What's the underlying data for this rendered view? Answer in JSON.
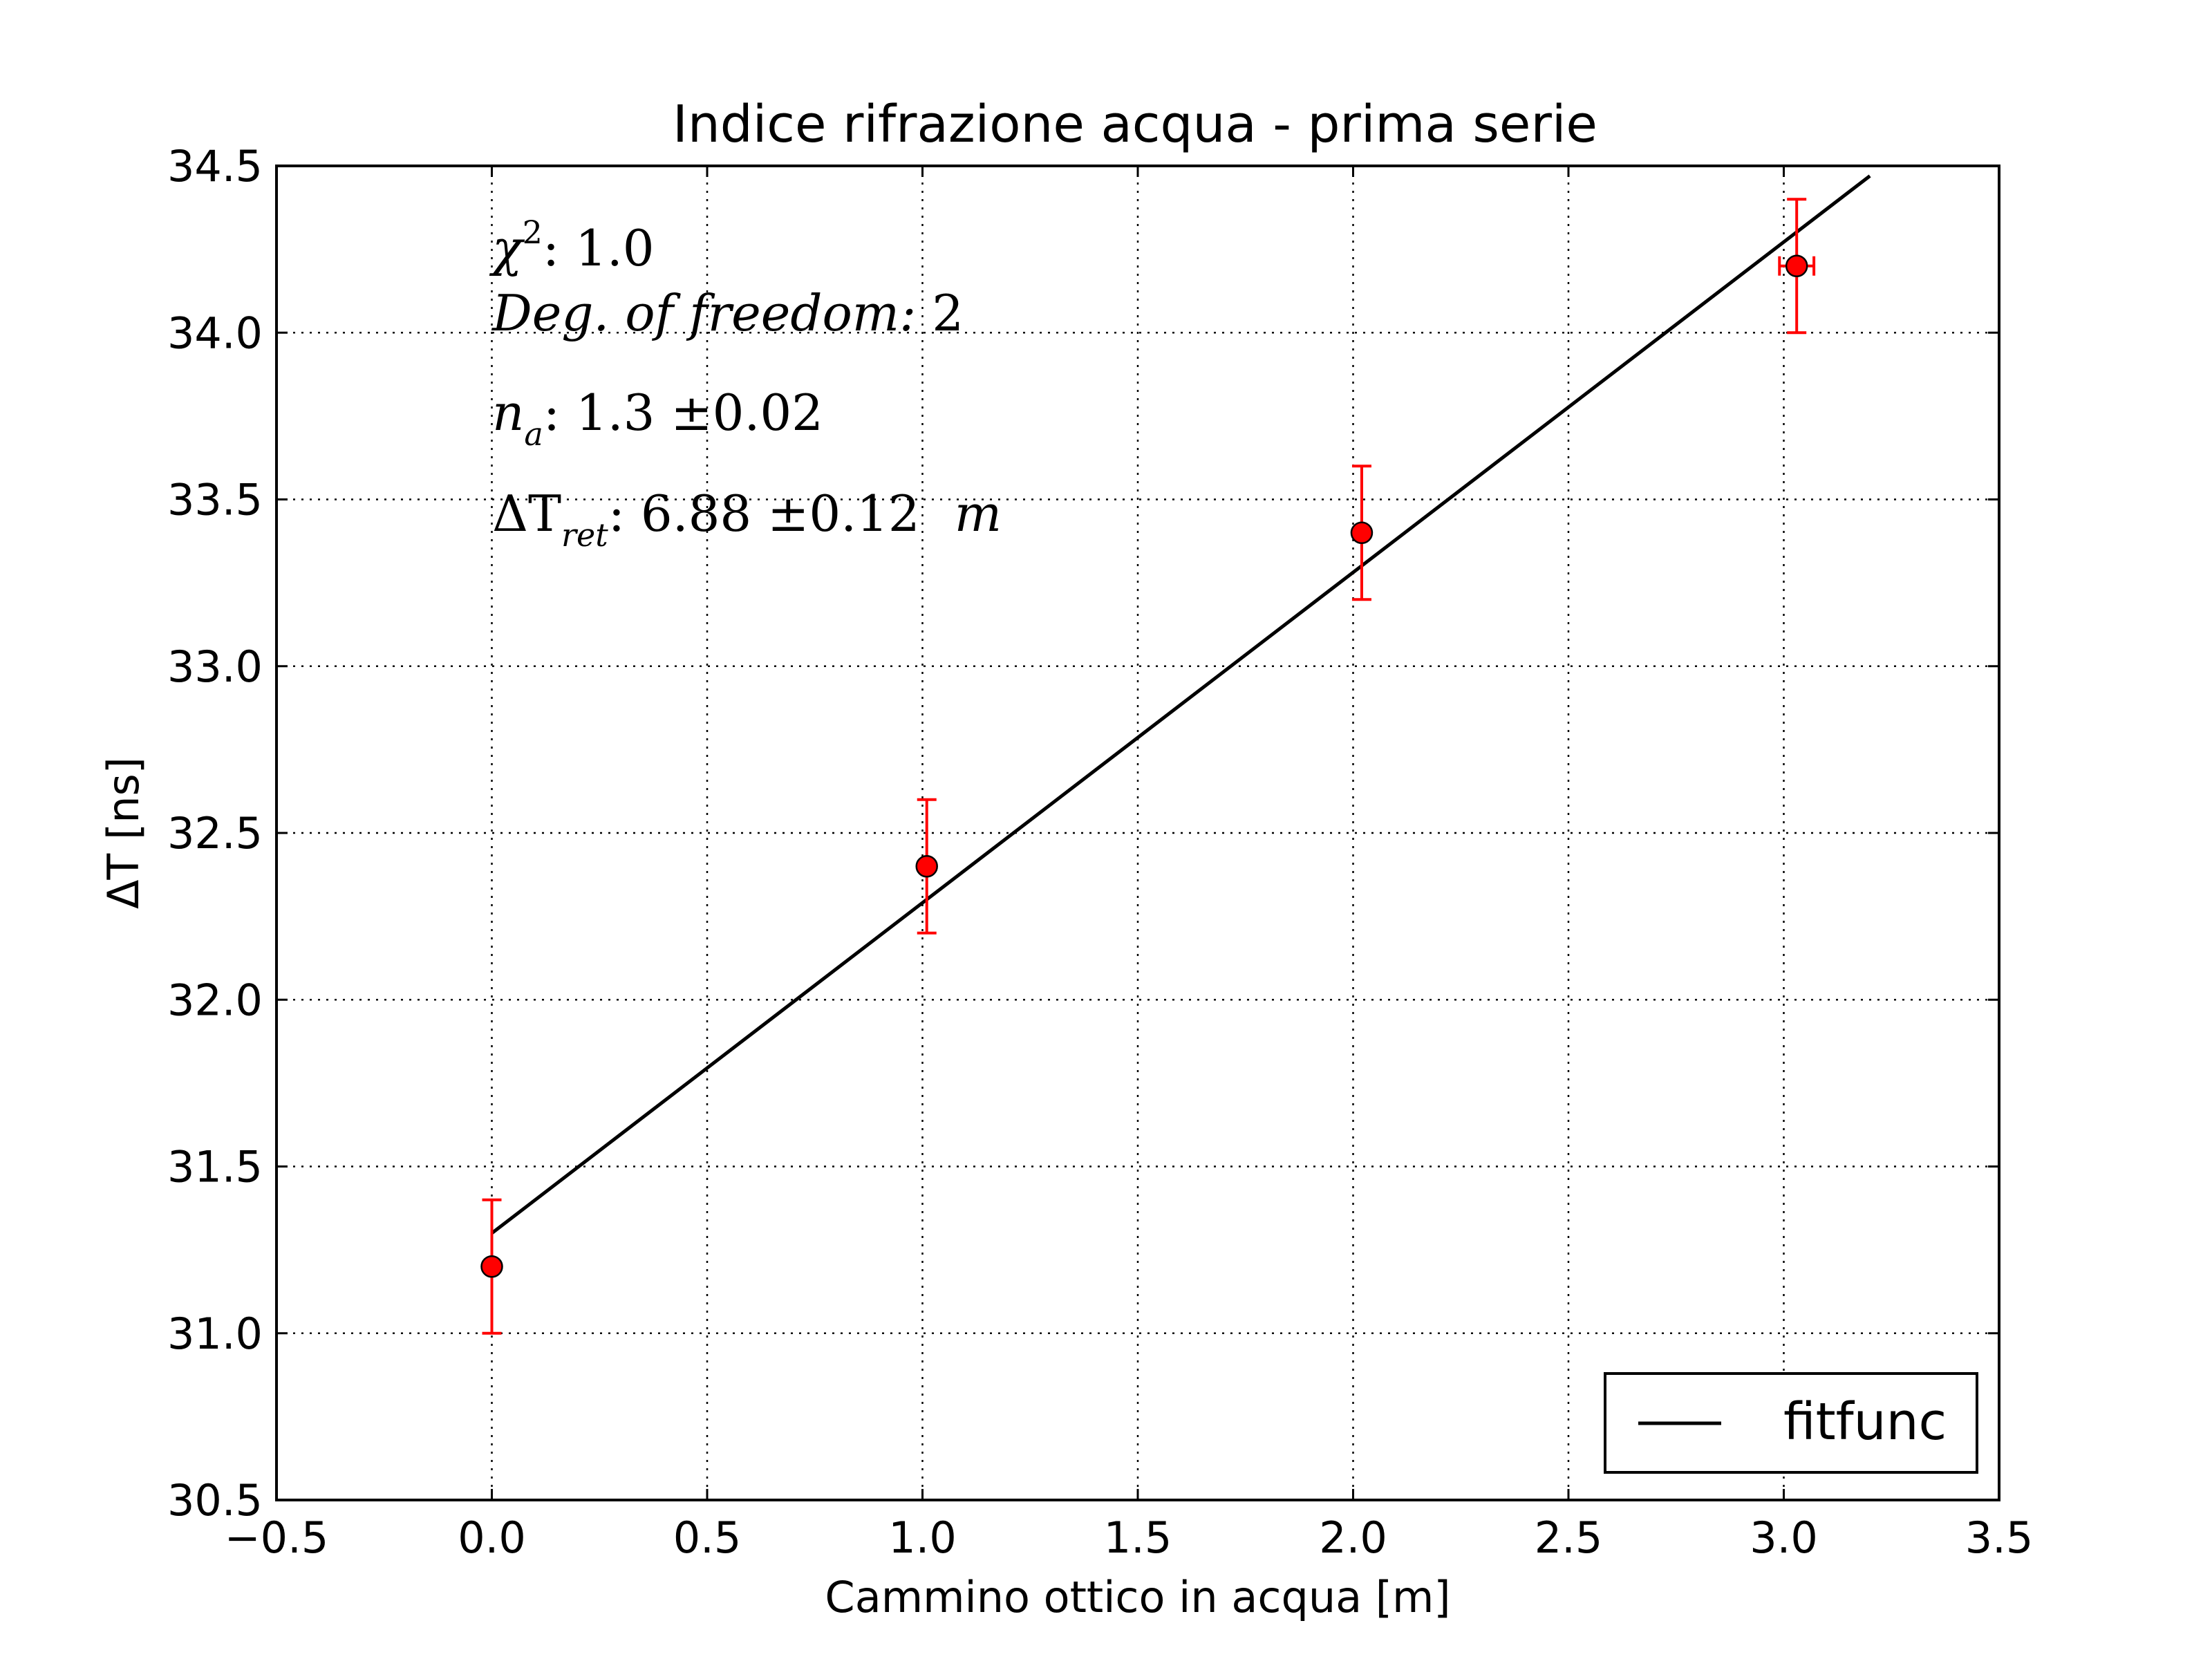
{
  "chart_data": {
    "type": "scatter",
    "title": "Indice rifrazione acqua - prima serie",
    "xlabel": "Cammino ottico in acqua [m]",
    "ylabel": "ΔT [ns]",
    "xlim": [
      -0.5,
      3.5
    ],
    "ylim": [
      30.5,
      34.5
    ],
    "xticks": [
      -0.5,
      0.0,
      0.5,
      1.0,
      1.5,
      2.0,
      2.5,
      3.0,
      3.5
    ],
    "xtick_labels": [
      "−0.5",
      "0.0",
      "0.5",
      "1.0",
      "1.5",
      "2.0",
      "2.5",
      "3.0",
      "3.5"
    ],
    "yticks": [
      30.5,
      31.0,
      31.5,
      32.0,
      32.5,
      33.0,
      33.5,
      34.0,
      34.5
    ],
    "ytick_labels": [
      "30.5",
      "31.0",
      "31.5",
      "32.0",
      "32.5",
      "33.0",
      "33.5",
      "34.0",
      "34.5"
    ],
    "grid": true,
    "legend_position": "lower-right",
    "series": [
      {
        "kind": "errorbar",
        "color": "#ff0000",
        "points": [
          {
            "x": 0.0,
            "y": 31.2,
            "yerr": 0.2,
            "xerr": 0.0
          },
          {
            "x": 1.01,
            "y": 32.4,
            "yerr": 0.2,
            "xerr": 0.01
          },
          {
            "x": 2.02,
            "y": 33.4,
            "yerr": 0.2,
            "xerr": 0.01
          },
          {
            "x": 3.03,
            "y": 34.2,
            "yerr": 0.2,
            "xerr": 0.04
          }
        ]
      },
      {
        "kind": "line",
        "name": "fitfunc",
        "color": "#000000",
        "x": [
          0.0,
          3.2
        ],
        "y": [
          31.3,
          34.47
        ]
      }
    ],
    "annotations": [
      {
        "id": "chi2",
        "symbol": "χ",
        "sup": "2",
        "text": ": 1.0"
      },
      {
        "id": "dof",
        "italic": "Deg. of freedom:",
        "text": " 2"
      },
      {
        "id": "na",
        "symbol": "n",
        "sub": "a",
        "text": ": 1.3 ±0.02"
      },
      {
        "id": "dtret",
        "symbol": "ΔT",
        "sub": "ret",
        "text": ": 6.88 ±0.12",
        "unit": "m"
      }
    ]
  }
}
